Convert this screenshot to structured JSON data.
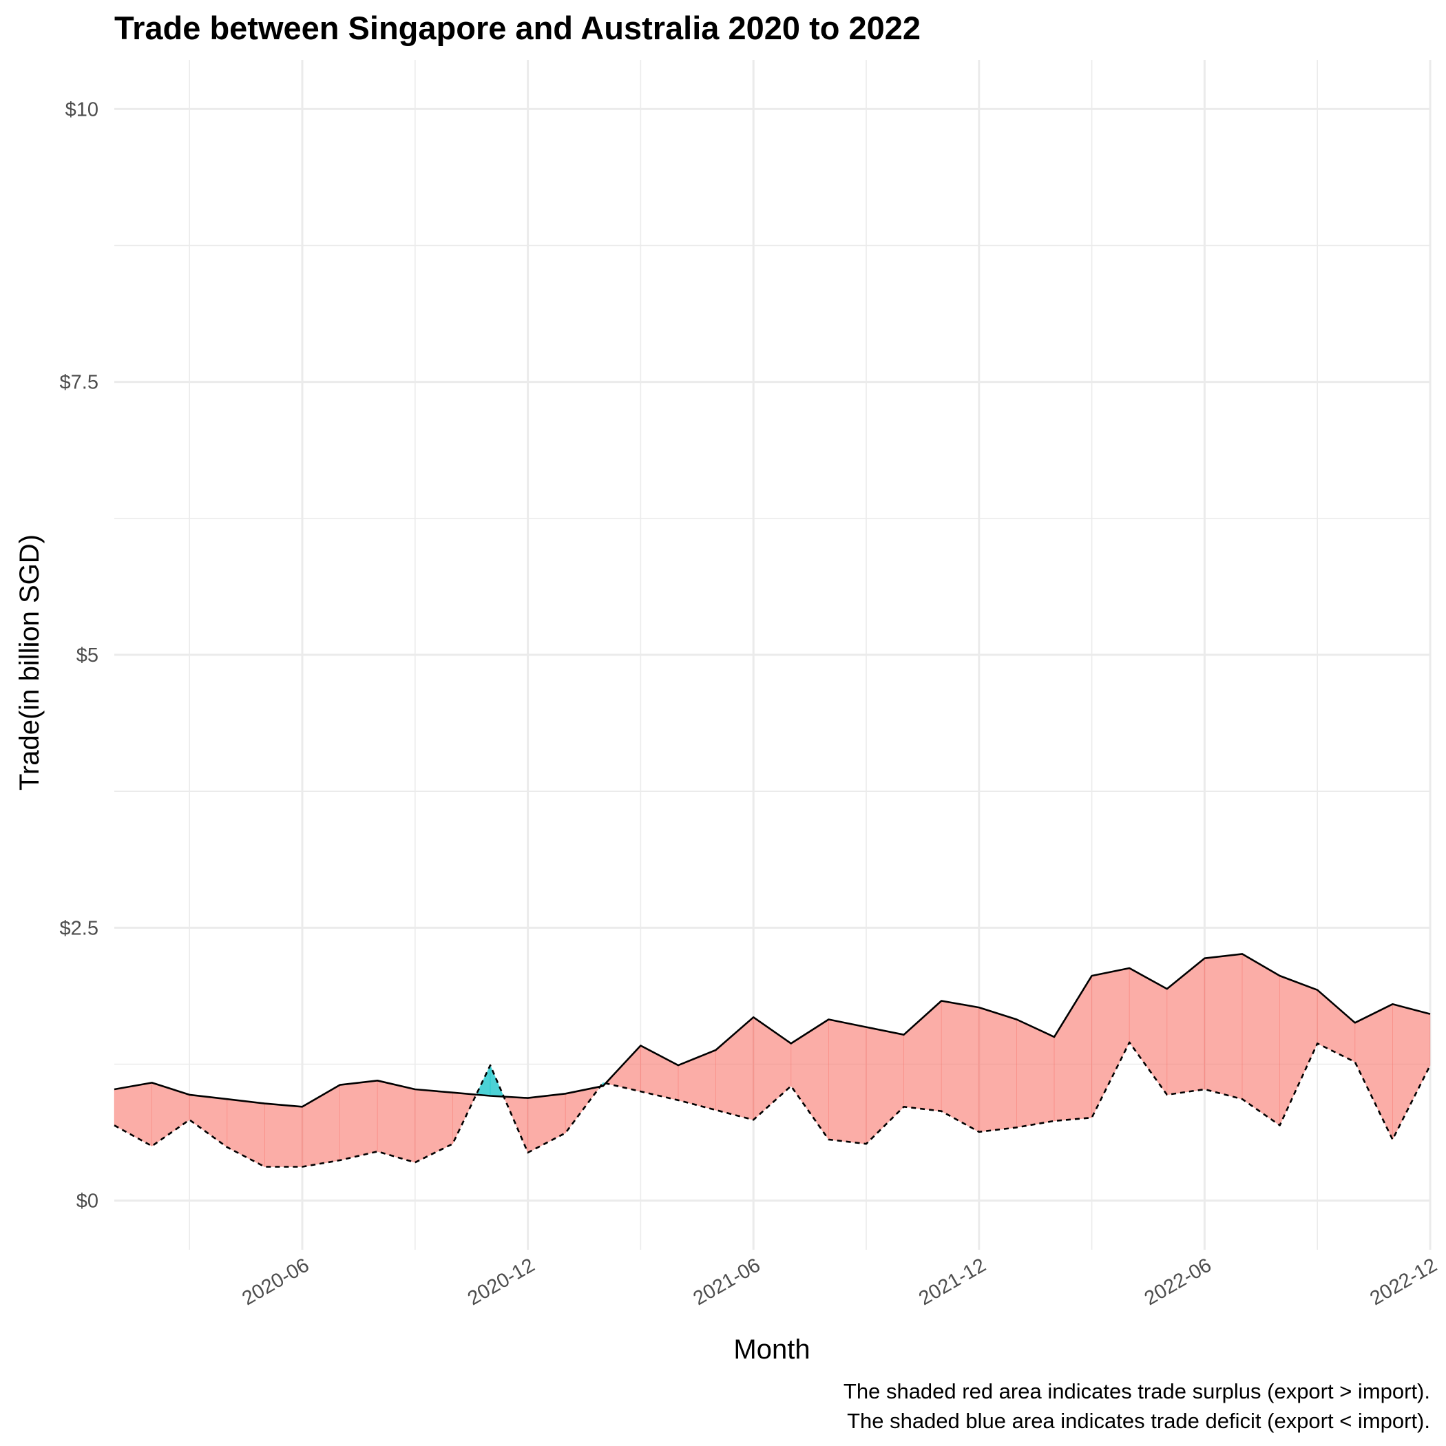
{
  "chart_data": {
    "type": "area",
    "title": "Trade between Singapore and Australia  2020 to 2022",
    "xlabel": "Month",
    "ylabel": "Trade(in billion SGD)",
    "ylim": [
      -0.45,
      10.45
    ],
    "y_ticks": [
      {
        "value": 0,
        "label": "$0"
      },
      {
        "value": 2.5,
        "label": "$2.5"
      },
      {
        "value": 5,
        "label": "$5"
      },
      {
        "value": 7.5,
        "label": "$7.5"
      },
      {
        "value": 10,
        "label": "$10"
      }
    ],
    "x_ticks": [
      "2020-06",
      "2020-12",
      "2021-06",
      "2021-12",
      "2022-06",
      "2022-12"
    ],
    "x": [
      "2020-01",
      "2020-02",
      "2020-03",
      "2020-04",
      "2020-05",
      "2020-06",
      "2020-07",
      "2020-08",
      "2020-09",
      "2020-10",
      "2020-11",
      "2020-12",
      "2021-01",
      "2021-02",
      "2021-03",
      "2021-04",
      "2021-05",
      "2021-06",
      "2021-07",
      "2021-08",
      "2021-09",
      "2021-10",
      "2021-11",
      "2021-12",
      "2022-01",
      "2022-02",
      "2022-03",
      "2022-04",
      "2022-05",
      "2022-06",
      "2022-07",
      "2022-08",
      "2022-09",
      "2022-10",
      "2022-11",
      "2022-12"
    ],
    "series": [
      {
        "name": "",
        "line": "solid",
        "values": [
          1.02,
          1.08,
          0.97,
          0.93,
          0.89,
          0.86,
          1.06,
          1.1,
          1.02,
          0.99,
          0.96,
          0.94,
          0.98,
          1.05,
          1.42,
          1.24,
          1.38,
          1.68,
          1.44,
          1.66,
          1.59,
          1.52,
          1.83,
          1.77,
          1.66,
          1.5,
          2.06,
          2.13,
          1.94,
          2.22,
          2.26,
          2.06,
          1.93,
          1.63,
          1.8,
          1.71
        ]
      },
      {
        "name": "",
        "line": "dashed",
        "values": [
          0.69,
          0.5,
          0.74,
          0.49,
          0.31,
          0.31,
          0.37,
          0.45,
          0.35,
          0.52,
          1.24,
          0.44,
          0.62,
          1.08,
          1.0,
          0.92,
          0.83,
          0.74,
          1.05,
          0.56,
          0.52,
          0.86,
          0.82,
          0.63,
          0.67,
          0.73,
          0.76,
          1.45,
          0.97,
          1.02,
          0.93,
          0.69,
          1.44,
          1.27,
          0.56,
          1.24
        ]
      }
    ],
    "fill_colors": {
      "surplus": "#f8766d",
      "deficit": "#00bfc4"
    },
    "captions": [
      "The shaded red area indicates trade surplus (export > import).",
      "The shaded blue area indicates trade deficit (export < import)."
    ],
    "grid": true,
    "legend": "none"
  }
}
